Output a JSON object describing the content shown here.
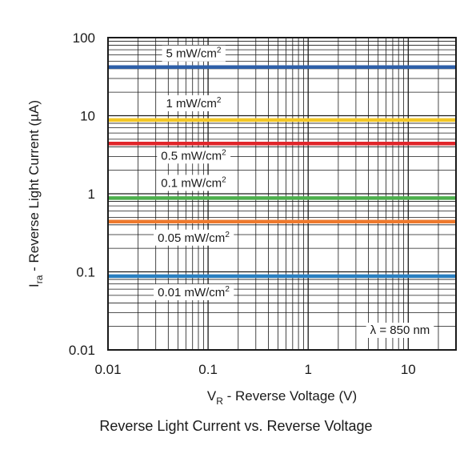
{
  "chart_data": {
    "type": "line",
    "x_scale": "log",
    "y_scale": "log",
    "xlim": [
      0.01,
      30
    ],
    "ylim": [
      0.01,
      100
    ],
    "x_ticks": [
      "0.01",
      "0.1",
      "1",
      "10"
    ],
    "y_ticks": [
      "0.01",
      "0.1",
      "1",
      "10",
      "100"
    ],
    "x_tick_values": [
      0.01,
      0.1,
      1,
      10
    ],
    "y_tick_values": [
      0.01,
      0.1,
      1,
      10,
      100
    ],
    "xlabel": {
      "pre": "V",
      "sub": "R",
      "post": " - Reverse Voltage (V)"
    },
    "ylabel": {
      "pre": "I",
      "sub": "ra",
      "post": " - Reverse Light Current (µA)"
    },
    "grid": true,
    "annotation": "λ = 850 nm",
    "series": [
      {
        "name": "5 mW/cm",
        "sup": "2",
        "color": "#2e5fa8",
        "x": [
          0.01,
          30
        ],
        "y": [
          42,
          42
        ]
      },
      {
        "name": "1 mW/cm",
        "sup": "2",
        "color": "#f2c623",
        "x": [
          0.01,
          30
        ],
        "y": [
          8.8,
          8.8
        ]
      },
      {
        "name": "0.5 mW/cm",
        "sup": "2",
        "color": "#e0262b",
        "x": [
          0.01,
          30
        ],
        "y": [
          4.4,
          4.4
        ]
      },
      {
        "name": "0.1 mW/cm",
        "sup": "2",
        "color": "#4cae4c",
        "x": [
          0.01,
          30
        ],
        "y": [
          0.88,
          0.88
        ]
      },
      {
        "name": "0.05 mW/cm",
        "sup": "2",
        "color": "#ee7a2e",
        "x": [
          0.01,
          30
        ],
        "y": [
          0.44,
          0.44
        ]
      },
      {
        "name": "0.01 mW/cm",
        "sup": "2",
        "color": "#2a7fc0",
        "x": [
          0.01,
          30
        ],
        "y": [
          0.088,
          0.088
        ]
      }
    ]
  },
  "caption": "Reverse Light Current vs. Reverse Voltage"
}
